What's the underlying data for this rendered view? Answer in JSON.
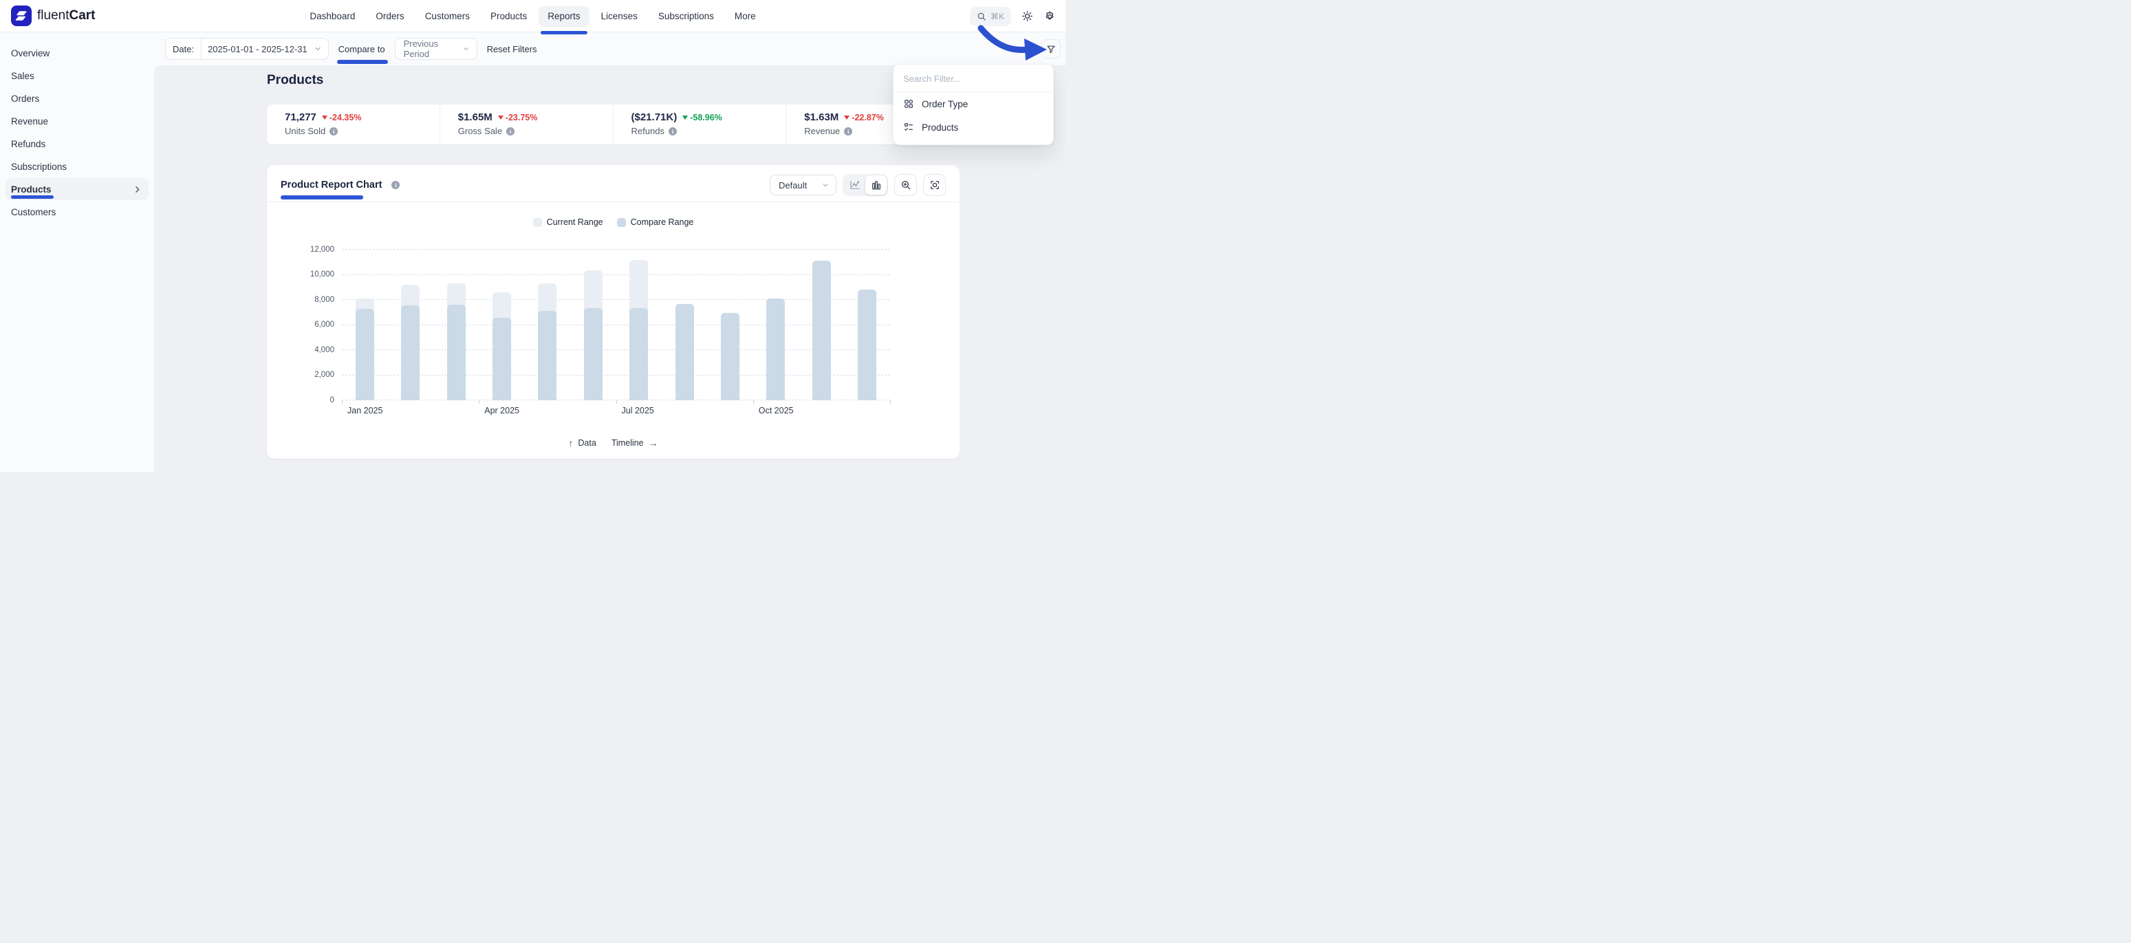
{
  "brand": {
    "name_regular": "fluent",
    "name_bold": "Cart"
  },
  "topnav": {
    "items": [
      {
        "label": "Dashboard",
        "active": false
      },
      {
        "label": "Orders",
        "active": false
      },
      {
        "label": "Customers",
        "active": false
      },
      {
        "label": "Products",
        "active": false
      },
      {
        "label": "Reports",
        "active": true
      },
      {
        "label": "Licenses",
        "active": false
      },
      {
        "label": "Subscriptions",
        "active": false
      },
      {
        "label": "More",
        "active": false
      }
    ],
    "search_shortcut": "⌘K"
  },
  "sidebar": {
    "items": [
      {
        "label": "Overview",
        "active": false
      },
      {
        "label": "Sales",
        "active": false
      },
      {
        "label": "Orders",
        "active": false
      },
      {
        "label": "Revenue",
        "active": false
      },
      {
        "label": "Refunds",
        "active": false
      },
      {
        "label": "Subscriptions",
        "active": false
      },
      {
        "label": "Products",
        "active": true
      },
      {
        "label": "Customers",
        "active": false
      }
    ]
  },
  "filter_bar": {
    "date_label": "Date:",
    "date_value": "2025-01-01 - 2025-12-31",
    "compare_label": "Compare to",
    "compare_value": "Previous Period",
    "reset_label": "Reset Filters"
  },
  "filter_menu": {
    "search_placeholder": "Search Filter...",
    "items": [
      {
        "label": "Order Type",
        "icon": "grid-icon"
      },
      {
        "label": "Products",
        "icon": "checklist-icon"
      }
    ]
  },
  "page": {
    "title": "Products"
  },
  "stats": [
    {
      "value": "71,277",
      "delta": "-24.35%",
      "delta_color": "#e23d3d",
      "label": "Units Sold"
    },
    {
      "value": "$1.65M",
      "delta": "-23.75%",
      "delta_color": "#e23d3d",
      "label": "Gross Sale"
    },
    {
      "value": "($21.71K)",
      "delta": "-58.96%",
      "delta_color": "#12a150",
      "label": "Refunds"
    },
    {
      "value": "$1.63M",
      "delta": "-22.87%",
      "delta_color": "#e23d3d",
      "label": "Revenue"
    }
  ],
  "chart_card": {
    "title": "Product Report Chart",
    "view_selector": "Default",
    "footer_data_label": "Data",
    "footer_timeline_label": "Timeline"
  },
  "chart_data": {
    "type": "bar",
    "title": "Product Report Chart",
    "categories": [
      "Jan 2025",
      "Feb 2025",
      "Mar 2025",
      "Apr 2025",
      "May 2025",
      "Jun 2025",
      "Jul 2025",
      "Aug 2025",
      "Sep 2025",
      "Oct 2025",
      "Nov 2025",
      "Dec 2025"
    ],
    "x_axis_tick_labels": [
      "Jan 2025",
      "Apr 2025",
      "Jul 2025",
      "Oct 2025"
    ],
    "series": [
      {
        "name": "Current Range",
        "color": "#e9eef4",
        "values": [
          8100,
          9200,
          9300,
          8600,
          9300,
          10350,
          11200,
          null,
          null,
          null,
          null,
          null
        ]
      },
      {
        "name": "Compare Range",
        "color": "#ccdae7",
        "values": [
          7300,
          7550,
          7600,
          6600,
          7100,
          7350,
          7350,
          7650,
          6950,
          8100,
          11150,
          8800
        ]
      }
    ],
    "ylim": [
      0,
      12000
    ],
    "y_ticks": [
      0,
      2000,
      4000,
      6000,
      8000,
      10000,
      12000
    ],
    "grid": "horizontal-dashed",
    "legend_position": "top-center"
  }
}
